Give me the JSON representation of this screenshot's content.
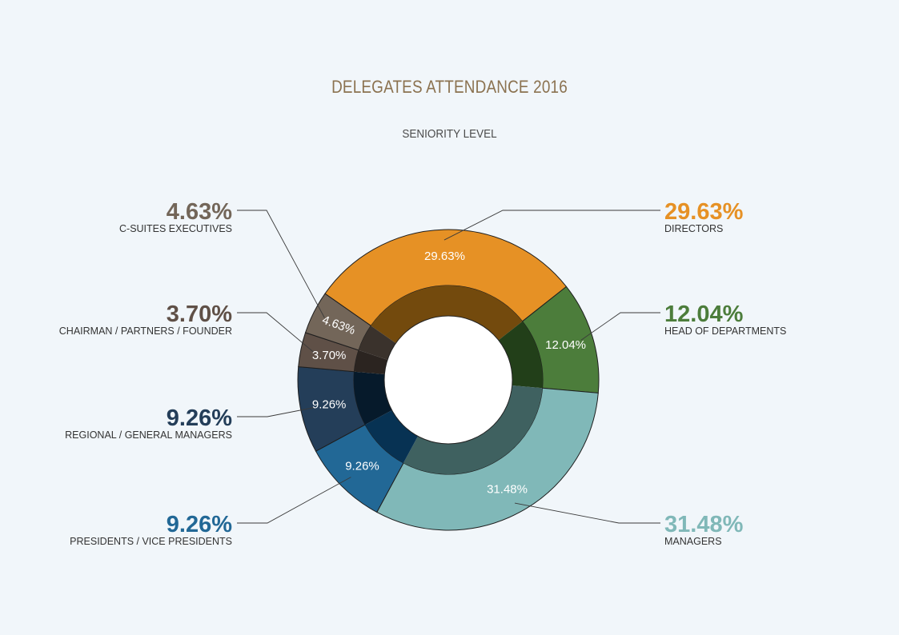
{
  "title": "DELEGATES ATTENDANCE 2016",
  "subtitle": "SENIORITY LEVEL",
  "chart_data": {
    "type": "pie",
    "style": "donut",
    "title": "DELEGATES ATTENDANCE 2016",
    "subtitle": "SENIORITY LEVEL",
    "slices": [
      {
        "label": "DIRECTORS",
        "value": 29.63,
        "display": "29.63%",
        "color": "#e69125",
        "inner_color": "#734a0d",
        "side": "right"
      },
      {
        "label": "HEAD OF DEPARTMENTS",
        "value": 12.04,
        "display": "12.04%",
        "color": "#4c7d3b",
        "inner_color": "#223f19",
        "side": "right"
      },
      {
        "label": "MANAGERS",
        "value": 31.48,
        "display": "31.48%",
        "color": "#80b8b8",
        "inner_color": "#3f6160",
        "side": "right"
      },
      {
        "label": "PRESIDENTS / VICE PRESIDENTS",
        "value": 9.26,
        "display": "9.26%",
        "color": "#226896",
        "inner_color": "#073253",
        "side": "left"
      },
      {
        "label": "REGIONAL / GENERAL MANAGERS",
        "value": 9.26,
        "display": "9.26%",
        "color": "#243e59",
        "inner_color": "#061a2b",
        "side": "left"
      },
      {
        "label": "CHAIRMAN / PARTNERS / FOUNDER",
        "value": 3.7,
        "display": "3.70%",
        "color": "#5f5047",
        "inner_color": "#2b2420",
        "side": "left"
      },
      {
        "label": "C-SUITES EXECUTIVES",
        "value": 4.63,
        "display": "4.63%",
        "color": "#736659",
        "inner_color": "#3a322c",
        "side": "left"
      }
    ]
  }
}
